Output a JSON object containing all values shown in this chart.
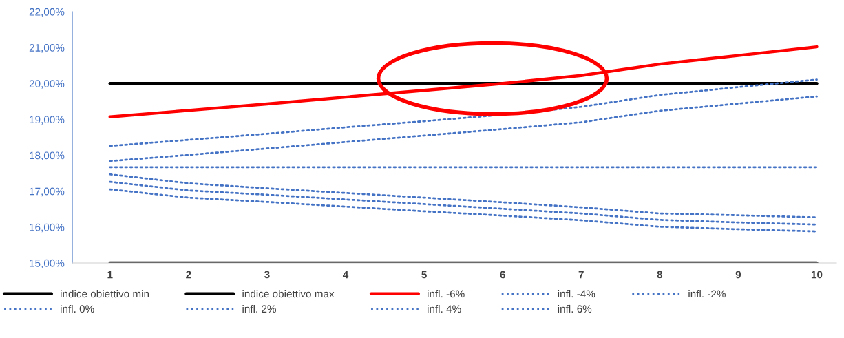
{
  "chart_data": {
    "type": "line",
    "categories": [
      "1",
      "2",
      "3",
      "4",
      "5",
      "6",
      "7",
      "8",
      "9",
      "10"
    ],
    "ylim": [
      15,
      22
    ],
    "yticks": [
      {
        "value": 15,
        "label": "15,00%"
      },
      {
        "value": 16,
        "label": "16,00%"
      },
      {
        "value": 17,
        "label": "17,00%"
      },
      {
        "value": 18,
        "label": "18,00%"
      },
      {
        "value": 19,
        "label": "19,00%"
      },
      {
        "value": 20,
        "label": "20,00%"
      },
      {
        "value": 21,
        "label": "21,00%"
      },
      {
        "value": 22,
        "label": "22,00%"
      }
    ],
    "grid": false,
    "legend": "bottom",
    "series": [
      {
        "name": "indice obiettivo min",
        "color": "#000000",
        "line_style": "solid",
        "values": [
          15,
          15,
          15,
          15,
          15,
          15,
          15,
          15,
          15,
          15
        ]
      },
      {
        "name": "indice obiettivo max",
        "color": "#000000",
        "line_style": "solid",
        "values": [
          20,
          20,
          20,
          20,
          20,
          20,
          20,
          20,
          20,
          20
        ]
      },
      {
        "name": "infl. -6%",
        "color": "#ff0000",
        "line_style": "solid",
        "values": [
          19.07,
          19.25,
          19.43,
          19.62,
          19.81,
          20.0,
          20.22,
          20.54,
          20.78,
          21.02
        ]
      },
      {
        "name": "infl. -4%",
        "color": "#4472c4",
        "line_style": "dotted",
        "values": [
          18.26,
          18.43,
          18.6,
          18.78,
          18.95,
          19.13,
          19.35,
          19.68,
          19.9,
          20.11
        ]
      },
      {
        "name": "infl. -2%",
        "color": "#4472c4",
        "line_style": "dotted",
        "values": [
          17.84,
          18.01,
          18.19,
          18.37,
          18.55,
          18.73,
          18.92,
          19.24,
          19.44,
          19.64
        ]
      },
      {
        "name": "infl. 0%",
        "color": "#4472c4",
        "line_style": "dotted",
        "values": [
          17.67,
          17.67,
          17.67,
          17.67,
          17.67,
          17.67,
          17.67,
          17.67,
          17.67,
          17.67
        ]
      },
      {
        "name": "infl. 2%",
        "color": "#4472c4",
        "line_style": "dotted",
        "values": [
          17.47,
          17.22,
          17.08,
          16.95,
          16.82,
          16.69,
          16.55,
          16.38,
          16.33,
          16.27
        ]
      },
      {
        "name": "infl. 4%",
        "color": "#4472c4",
        "line_style": "dotted",
        "values": [
          17.26,
          17.02,
          16.9,
          16.77,
          16.64,
          16.51,
          16.38,
          16.2,
          16.13,
          16.07
        ]
      },
      {
        "name": "infl. 6%",
        "color": "#4472c4",
        "line_style": "dotted",
        "values": [
          17.05,
          16.82,
          16.7,
          16.57,
          16.44,
          16.32,
          16.19,
          16.01,
          15.94,
          15.88
        ]
      }
    ]
  }
}
